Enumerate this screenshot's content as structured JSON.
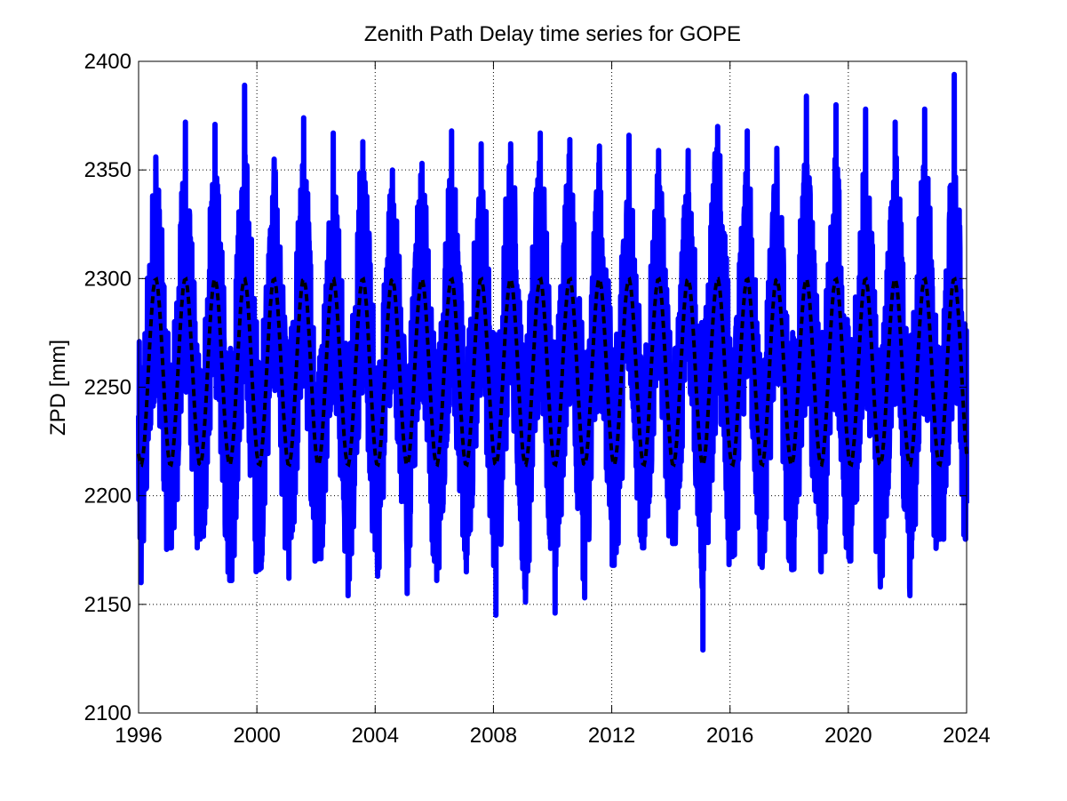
{
  "chart_data": {
    "type": "line",
    "title": "Zenith Path Delay time series for GOPE",
    "xlabel": "",
    "ylabel": "ZPD [mm]",
    "xlim": [
      1996,
      2024
    ],
    "ylim": [
      2100,
      2400
    ],
    "x_ticks": [
      "1996",
      "2000",
      "2004",
      "2008",
      "2012",
      "2016",
      "2020",
      "2024"
    ],
    "y_ticks": [
      "2100",
      "2150",
      "2200",
      "2250",
      "2300",
      "2350",
      "2400"
    ],
    "grid": true,
    "legend": "none",
    "series": [
      {
        "color": "#0000ff",
        "style": "solid",
        "envelope": {
          "mean": 2257,
          "seasonal_amplitude": 42,
          "peak_phase_year_fraction": 0.58,
          "annual_max": [
            2356,
            2372,
            2371,
            2389,
            2355,
            2374,
            2367,
            2363,
            2350,
            2353,
            2368,
            2362,
            2362,
            2367,
            2364,
            2361,
            2366,
            2359,
            2359,
            2370,
            2368,
            2360,
            2384,
            2380,
            2378,
            2372,
            2378,
            2394
          ],
          "annual_min": [
            2160,
            2176,
            2180,
            2161,
            2166,
            2162,
            2171,
            2154,
            2163,
            2155,
            2161,
            2165,
            2145,
            2151,
            2146,
            2153,
            2168,
            2176,
            2178,
            2129,
            2172,
            2167,
            2166,
            2165,
            2170,
            2158,
            2154,
            2180
          ]
        }
      },
      {
        "color": "#000000",
        "style": "dashed",
        "model": {
          "mean": 2257,
          "annual_amplitude": 43,
          "peak_phase_year_fraction": 0.58,
          "sample_step_years": 0.05
        }
      }
    ]
  }
}
